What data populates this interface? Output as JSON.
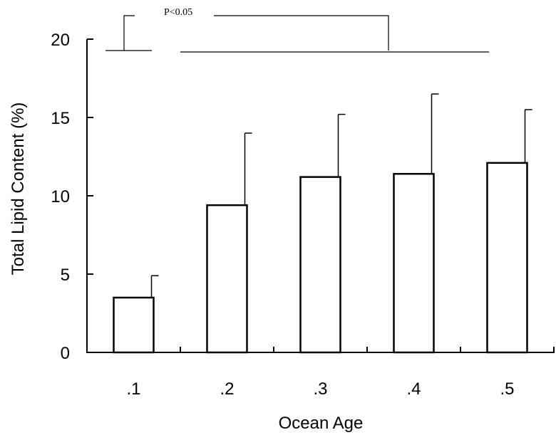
{
  "chart_data": {
    "type": "bar",
    "categories": [
      ".1",
      ".2",
      ".3",
      ".4",
      ".5"
    ],
    "values": [
      3.5,
      9.4,
      11.2,
      11.4,
      12.1
    ],
    "error_upper": [
      4.9,
      14.0,
      15.2,
      16.5,
      15.5
    ],
    "xlabel": "Ocean Age",
    "ylabel": "Total Lipid Content (%)",
    "ylim": [
      0,
      20
    ],
    "yticks": [
      0,
      5,
      10,
      15,
      20
    ],
    "yticklabels": [
      "0",
      "5",
      "10",
      "15",
      "20"
    ],
    "grid": false,
    "legend": "none",
    "annotation": {
      "text": "P<0.05",
      "groups": [
        [
          ".1"
        ],
        [
          ".2",
          ".3",
          ".4",
          ".5"
        ]
      ]
    },
    "colors": {
      "bar_fill": "#ffffff",
      "bar_edge": "#000000"
    }
  }
}
